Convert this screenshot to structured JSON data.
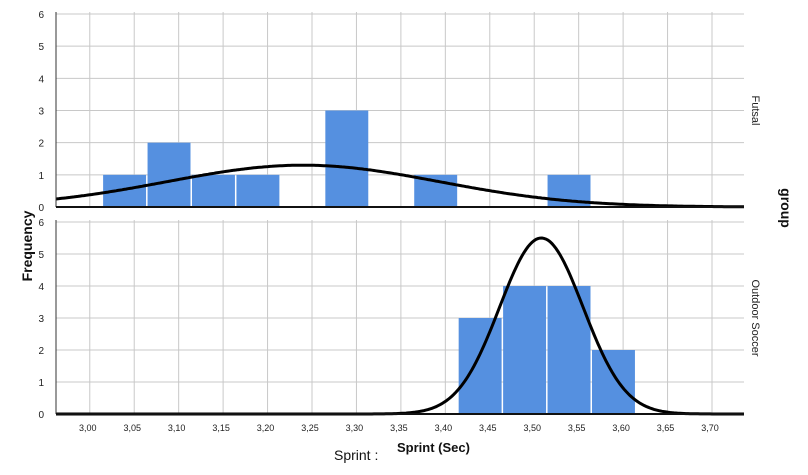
{
  "chart_data": {
    "type": "bar",
    "subtype": "faceted histogram with normal curve",
    "xlabel": "Sprint (Sec)",
    "xlabel_overlap": "Sprint :",
    "ylabel": "Frequency",
    "facet_label": "group",
    "xlim": [
      2.962,
      3.736
    ],
    "ylim": [
      0,
      6
    ],
    "x_ticks": [
      "3,00",
      "3,05",
      "3,10",
      "3,15",
      "3,20",
      "3,25",
      "3,30",
      "3,35",
      "3,40",
      "3,45",
      "3,50",
      "3,55",
      "3,60",
      "3,65",
      "3,70"
    ],
    "y_ticks": [
      "0",
      "1",
      "2",
      "3",
      "4",
      "5",
      "6"
    ],
    "grid": true,
    "bar_color": "#5590e0",
    "curve_color": "#000000",
    "panels": [
      {
        "name": "Futsal",
        "bins": [
          {
            "start": 3.015,
            "end": 3.065,
            "count": 1
          },
          {
            "start": 3.065,
            "end": 3.115,
            "count": 2
          },
          {
            "start": 3.115,
            "end": 3.165,
            "count": 1
          },
          {
            "start": 3.165,
            "end": 3.215,
            "count": 1
          },
          {
            "start": 3.265,
            "end": 3.315,
            "count": 3
          },
          {
            "start": 3.365,
            "end": 3.415,
            "count": 1
          },
          {
            "start": 3.515,
            "end": 3.565,
            "count": 1
          }
        ],
        "normal_curve": {
          "mean": 3.24,
          "sd": 0.153,
          "peak": 1.3
        }
      },
      {
        "name": "Outdoor Soccer",
        "bins": [
          {
            "start": 3.415,
            "end": 3.465,
            "count": 3
          },
          {
            "start": 3.465,
            "end": 3.515,
            "count": 4
          },
          {
            "start": 3.515,
            "end": 3.565,
            "count": 4
          },
          {
            "start": 3.565,
            "end": 3.615,
            "count": 2
          }
        ],
        "normal_curve": {
          "mean": 3.508,
          "sd": 0.047,
          "peak": 5.5
        }
      }
    ]
  }
}
